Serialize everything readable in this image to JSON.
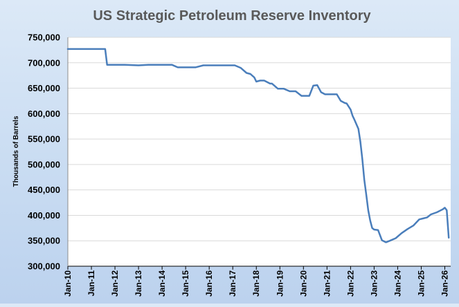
{
  "chart_data": {
    "type": "line",
    "title": "US Strategic Petroleum Reserve Inventory",
    "xlabel": "",
    "ylabel": "Thousands of Barrels",
    "ylim": [
      300000,
      750000
    ],
    "ytick_labels": [
      "300,000",
      "350,000",
      "400,000",
      "450,000",
      "500,000",
      "550,000",
      "600,000",
      "650,000",
      "700,000",
      "750,000"
    ],
    "xtick_labels": [
      "Jan-10",
      "Jan-11",
      "Jan-12",
      "Jan-13",
      "Jan-14",
      "Jan-15",
      "Jan-16",
      "Jan-17",
      "Jan-18",
      "Jan-19",
      "Jan-20",
      "Jan-21",
      "Jan-22",
      "Jan-23",
      "Jan-24",
      "Jan-25",
      "Jan-26"
    ],
    "xlim": [
      "2010-01",
      "2026-04"
    ],
    "grid": true,
    "legend": "none",
    "series": [
      {
        "color": "#4a7ebb",
        "x": [
          "2010-01",
          "2011-01",
          "2011-08",
          "2011-09",
          "2012-06",
          "2013-01",
          "2013-06",
          "2014-01",
          "2014-06",
          "2014-09",
          "2015-06",
          "2015-10",
          "2016-06",
          "2017-01",
          "2017-02",
          "2017-05",
          "2017-08",
          "2017-10",
          "2017-12",
          "2018-01",
          "2018-03",
          "2018-05",
          "2018-08",
          "2018-09",
          "2018-12",
          "2019-03",
          "2019-06",
          "2019-09",
          "2019-12",
          "2020-04",
          "2020-06",
          "2020-08",
          "2020-10",
          "2020-12",
          "2021-06",
          "2021-08",
          "2021-10",
          "2021-11",
          "2022-01",
          "2022-02",
          "2022-03",
          "2022-05",
          "2022-06",
          "2022-07",
          "2022-08",
          "2022-09",
          "2022-10",
          "2022-11",
          "2022-12",
          "2023-01",
          "2023-03",
          "2023-05",
          "2023-07",
          "2023-09",
          "2023-12",
          "2024-03",
          "2024-06",
          "2024-09",
          "2024-12",
          "2025-02",
          "2025-04",
          "2025-06",
          "2025-09",
          "2025-12",
          "2026-01",
          "2026-02",
          "2026-03"
        ],
        "values": [
          727000,
          727000,
          727000,
          696000,
          696000,
          695000,
          696000,
          696000,
          696000,
          691000,
          691000,
          695000,
          695000,
          695000,
          695000,
          690000,
          680000,
          678000,
          671000,
          663000,
          665000,
          665000,
          659000,
          659000,
          649000,
          649000,
          644000,
          644000,
          635000,
          635000,
          655000,
          656000,
          642000,
          638000,
          638000,
          625000,
          621000,
          620000,
          608000,
          596000,
          588000,
          570000,
          545000,
          510000,
          470000,
          440000,
          410000,
          390000,
          375000,
          372000,
          371000,
          351000,
          347000,
          350000,
          355000,
          365000,
          373000,
          380000,
          392000,
          394000,
          396000,
          402000,
          406000,
          412000,
          415000,
          410000,
          356000
        ]
      }
    ]
  }
}
